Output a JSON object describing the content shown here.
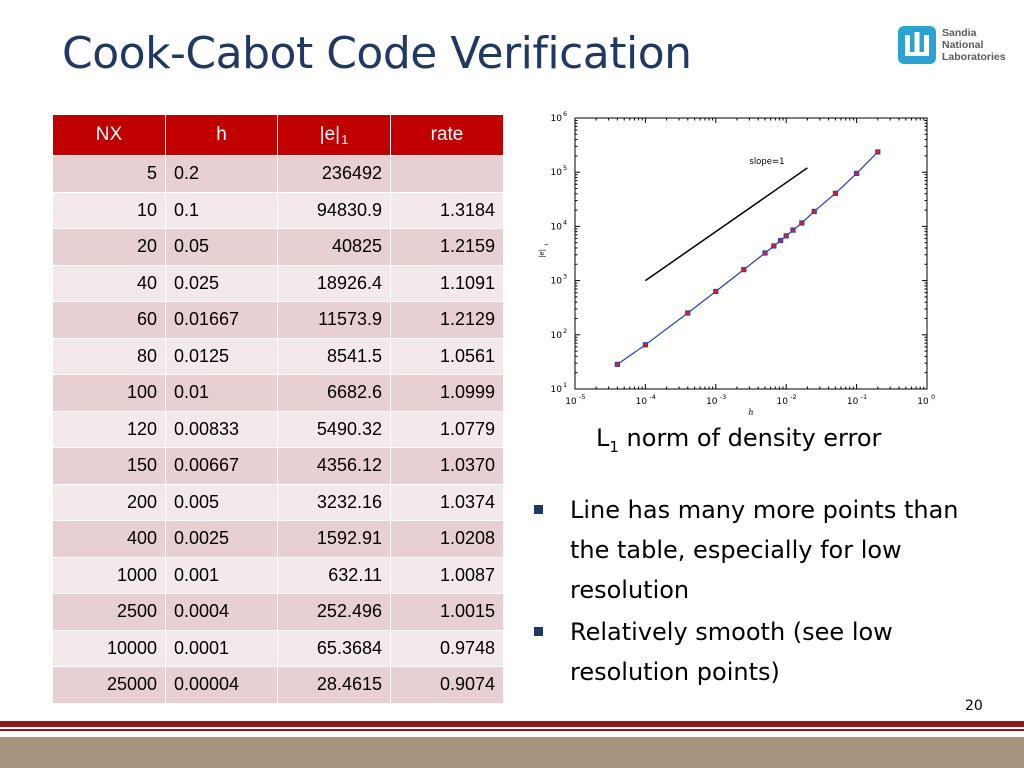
{
  "slide": {
    "title": "Cook-Cabot Code Verification",
    "page_number": "20"
  },
  "logo": {
    "lines": [
      "Sandia",
      "National",
      "Laboratories"
    ],
    "color": "#2aa3d3"
  },
  "table": {
    "headers": {
      "nx": "NX",
      "h": "h",
      "e_main": "|e|",
      "e_sub": "1",
      "rate": "rate"
    },
    "rows": [
      [
        "5",
        "0.2",
        "236492",
        ""
      ],
      [
        "10",
        "0.1",
        "94830.9",
        "1.3184"
      ],
      [
        "20",
        "0.05",
        "40825",
        "1.2159"
      ],
      [
        "40",
        "0.025",
        "18926.4",
        "1.1091"
      ],
      [
        "60",
        "0.01667",
        "11573.9",
        "1.2129"
      ],
      [
        "80",
        "0.0125",
        "8541.5",
        "1.0561"
      ],
      [
        "100",
        "0.01",
        "6682.6",
        "1.0999"
      ],
      [
        "120",
        "0.00833",
        "5490.32",
        "1.0779"
      ],
      [
        "150",
        "0.00667",
        "4356.12",
        "1.0370"
      ],
      [
        "200",
        "0.005",
        "3232.16",
        "1.0374"
      ],
      [
        "400",
        "0.0025",
        "1592.91",
        "1.0208"
      ],
      [
        "1000",
        "0.001",
        "632.11",
        "1.0087"
      ],
      [
        "2500",
        "0.0004",
        "252.496",
        "1.0015"
      ],
      [
        "10000",
        "0.0001",
        "65.3684",
        "0.9748"
      ],
      [
        "25000",
        "0.00004",
        "28.4615",
        "0.9074"
      ]
    ],
    "header_color": "#c00000"
  },
  "chart_data": {
    "type": "line",
    "xlabel": "h",
    "ylabel": "|e|",
    "ylabel_sub": "1",
    "xscale": "log",
    "yscale": "log",
    "xlim": [
      1e-05,
      1
    ],
    "ylim": [
      10,
      1000000
    ],
    "x_tick_labels": [
      "10",
      "10",
      "10",
      "10",
      "10",
      "10"
    ],
    "x_tick_exponents": [
      "-5",
      "-4",
      "-3",
      "-2",
      "-1",
      "0"
    ],
    "y_tick_labels": [
      "10",
      "10",
      "10",
      "10",
      "10",
      "10"
    ],
    "y_tick_exponents": [
      "1",
      "2",
      "3",
      "4",
      "5",
      "6"
    ],
    "annotation": "slope=1",
    "reference_line": {
      "x": [
        0.0001,
        0.02
      ],
      "y": [
        1000,
        120000
      ]
    },
    "series": [
      {
        "color": "#1f3fbf",
        "marker_color": "#cc2233",
        "x": [
          4e-05,
          0.0001,
          0.0004,
          0.001,
          0.0025,
          0.005,
          0.00667,
          0.00833,
          0.01,
          0.0125,
          0.01667,
          0.025,
          0.05,
          0.1,
          0.2
        ],
        "y": [
          28.4615,
          65.3684,
          252.496,
          632.11,
          1592.91,
          3232.16,
          4356.12,
          5490.32,
          6682.6,
          8541.5,
          11573.9,
          18926.4,
          40825,
          94830.9,
          236492
        ]
      }
    ]
  },
  "caption": {
    "main": "L",
    "sub": "1",
    "rest": " norm of density error"
  },
  "bullets": [
    "Line has many more points than the table, especially for low resolution",
    "Relatively smooth (see low resolution points)"
  ]
}
